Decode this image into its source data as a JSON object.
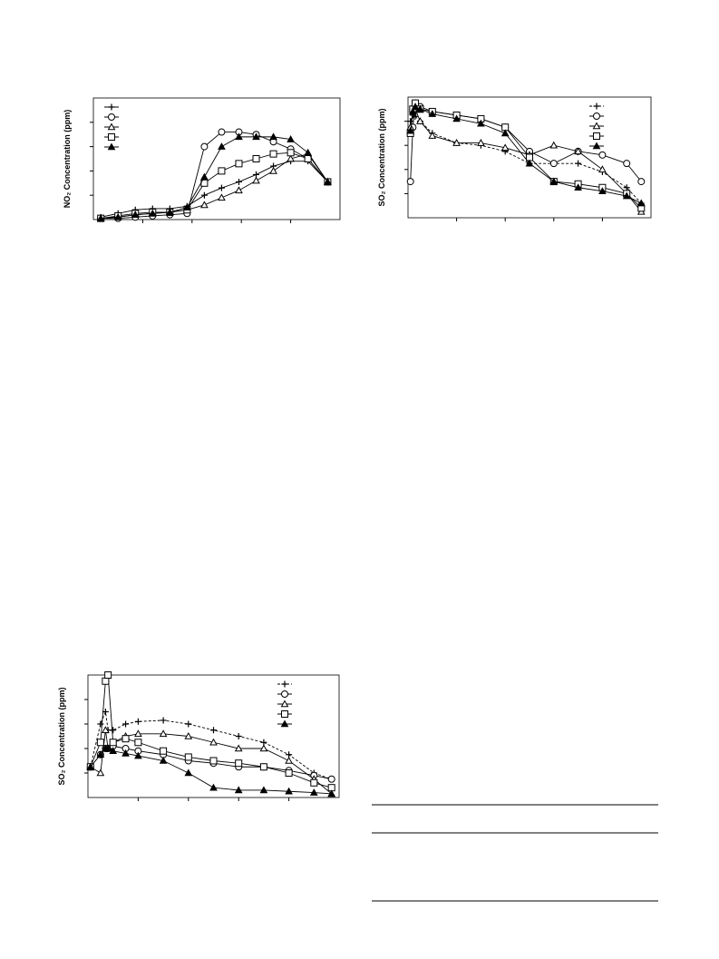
{
  "chart_data": [
    {
      "type": "line",
      "ylabel": "NO₂ Concentration (ppm)",
      "xlim": [
        0,
        100
      ],
      "ylim": [
        0,
        100
      ],
      "legend": "upper left",
      "x": [
        3,
        10,
        17,
        24,
        31,
        38,
        45,
        52,
        59,
        66,
        73,
        80,
        87,
        95
      ],
      "series": [
        {
          "marker": "plus",
          "color": "#000000",
          "values": [
            2,
            5,
            8,
            9,
            9,
            11,
            20,
            26,
            31,
            37,
            44,
            48,
            48,
            31
          ]
        },
        {
          "marker": "circle",
          "color": "#000000",
          "values": [
            1,
            1,
            2,
            3,
            4,
            5,
            60,
            72,
            72,
            70,
            64,
            58,
            50,
            31
          ]
        },
        {
          "marker": "triangle",
          "color": "#000000",
          "values": [
            1,
            2,
            4,
            5,
            6,
            8,
            12,
            18,
            24,
            32,
            40,
            50,
            54,
            31
          ]
        },
        {
          "marker": "square",
          "color": "#000000",
          "values": [
            1,
            3,
            5,
            6,
            6,
            8,
            30,
            40,
            46,
            50,
            54,
            55,
            50,
            31
          ]
        },
        {
          "marker": "filled-triangle",
          "color": "#000000",
          "values": [
            1,
            2,
            4,
            5,
            6,
            10,
            35,
            60,
            68,
            68,
            68,
            66,
            55,
            31
          ]
        }
      ]
    },
    {
      "type": "line",
      "ylabel": "SO₂ Concentration (ppm)",
      "xlim": [
        0,
        100
      ],
      "ylim": [
        0,
        100
      ],
      "legend": "upper right",
      "x": [
        1,
        2,
        3,
        5,
        10,
        20,
        30,
        40,
        50,
        60,
        70,
        80,
        90,
        96
      ],
      "series": [
        {
          "marker": "plus",
          "color": "#000000",
          "dashed": true,
          "values": [
            80,
            85,
            84,
            80,
            70,
            62,
            60,
            55,
            45,
            45,
            45,
            38,
            25,
            12
          ]
        },
        {
          "marker": "circle",
          "color": "#000000",
          "values": [
            30,
            75,
            95,
            92,
            88,
            85,
            82,
            75,
            55,
            45,
            55,
            52,
            45,
            30
          ]
        },
        {
          "marker": "triangle",
          "color": "#000000",
          "values": [
            75,
            88,
            90,
            80,
            68,
            62,
            62,
            58,
            52,
            60,
            55,
            40,
            20,
            5
          ]
        },
        {
          "marker": "square",
          "color": "#000000",
          "values": [
            70,
            90,
            95,
            90,
            88,
            85,
            82,
            75,
            50,
            30,
            28,
            25,
            20,
            8
          ]
        },
        {
          "marker": "filled-triangle",
          "color": "#000000",
          "values": [
            72,
            88,
            92,
            90,
            86,
            82,
            78,
            70,
            45,
            30,
            25,
            22,
            18,
            12
          ]
        }
      ]
    },
    {
      "type": "line",
      "ylabel": "SO₂ Concentration (ppm)",
      "xlim": [
        0,
        100
      ],
      "ylim": [
        0,
        100
      ],
      "legend": "upper right",
      "x": [
        1,
        5,
        7,
        8,
        10,
        15,
        20,
        30,
        40,
        50,
        60,
        70,
        80,
        90,
        97
      ],
      "series": [
        {
          "marker": "plus",
          "color": "#000000",
          "dashed": true,
          "values": [
            25,
            60,
            70,
            55,
            55,
            60,
            62,
            63,
            60,
            55,
            50,
            45,
            35,
            20,
            15
          ]
        },
        {
          "marker": "circle",
          "color": "#000000",
          "values": [
            25,
            35,
            40,
            40,
            42,
            40,
            38,
            35,
            30,
            28,
            25,
            25,
            22,
            18,
            15
          ]
        },
        {
          "marker": "triangle",
          "color": "#000000",
          "values": [
            25,
            20,
            55,
            40,
            45,
            50,
            52,
            52,
            50,
            45,
            40,
            40,
            30,
            15,
            3
          ]
        },
        {
          "marker": "square",
          "color": "#000000",
          "values": [
            25,
            45,
            95,
            100,
            45,
            48,
            45,
            38,
            33,
            30,
            28,
            25,
            20,
            12,
            8
          ]
        },
        {
          "marker": "filled-triangle",
          "color": "#000000",
          "values": [
            25,
            35,
            40,
            40,
            38,
            36,
            34,
            30,
            20,
            8,
            6,
            6,
            5,
            4,
            3
          ]
        }
      ]
    }
  ]
}
